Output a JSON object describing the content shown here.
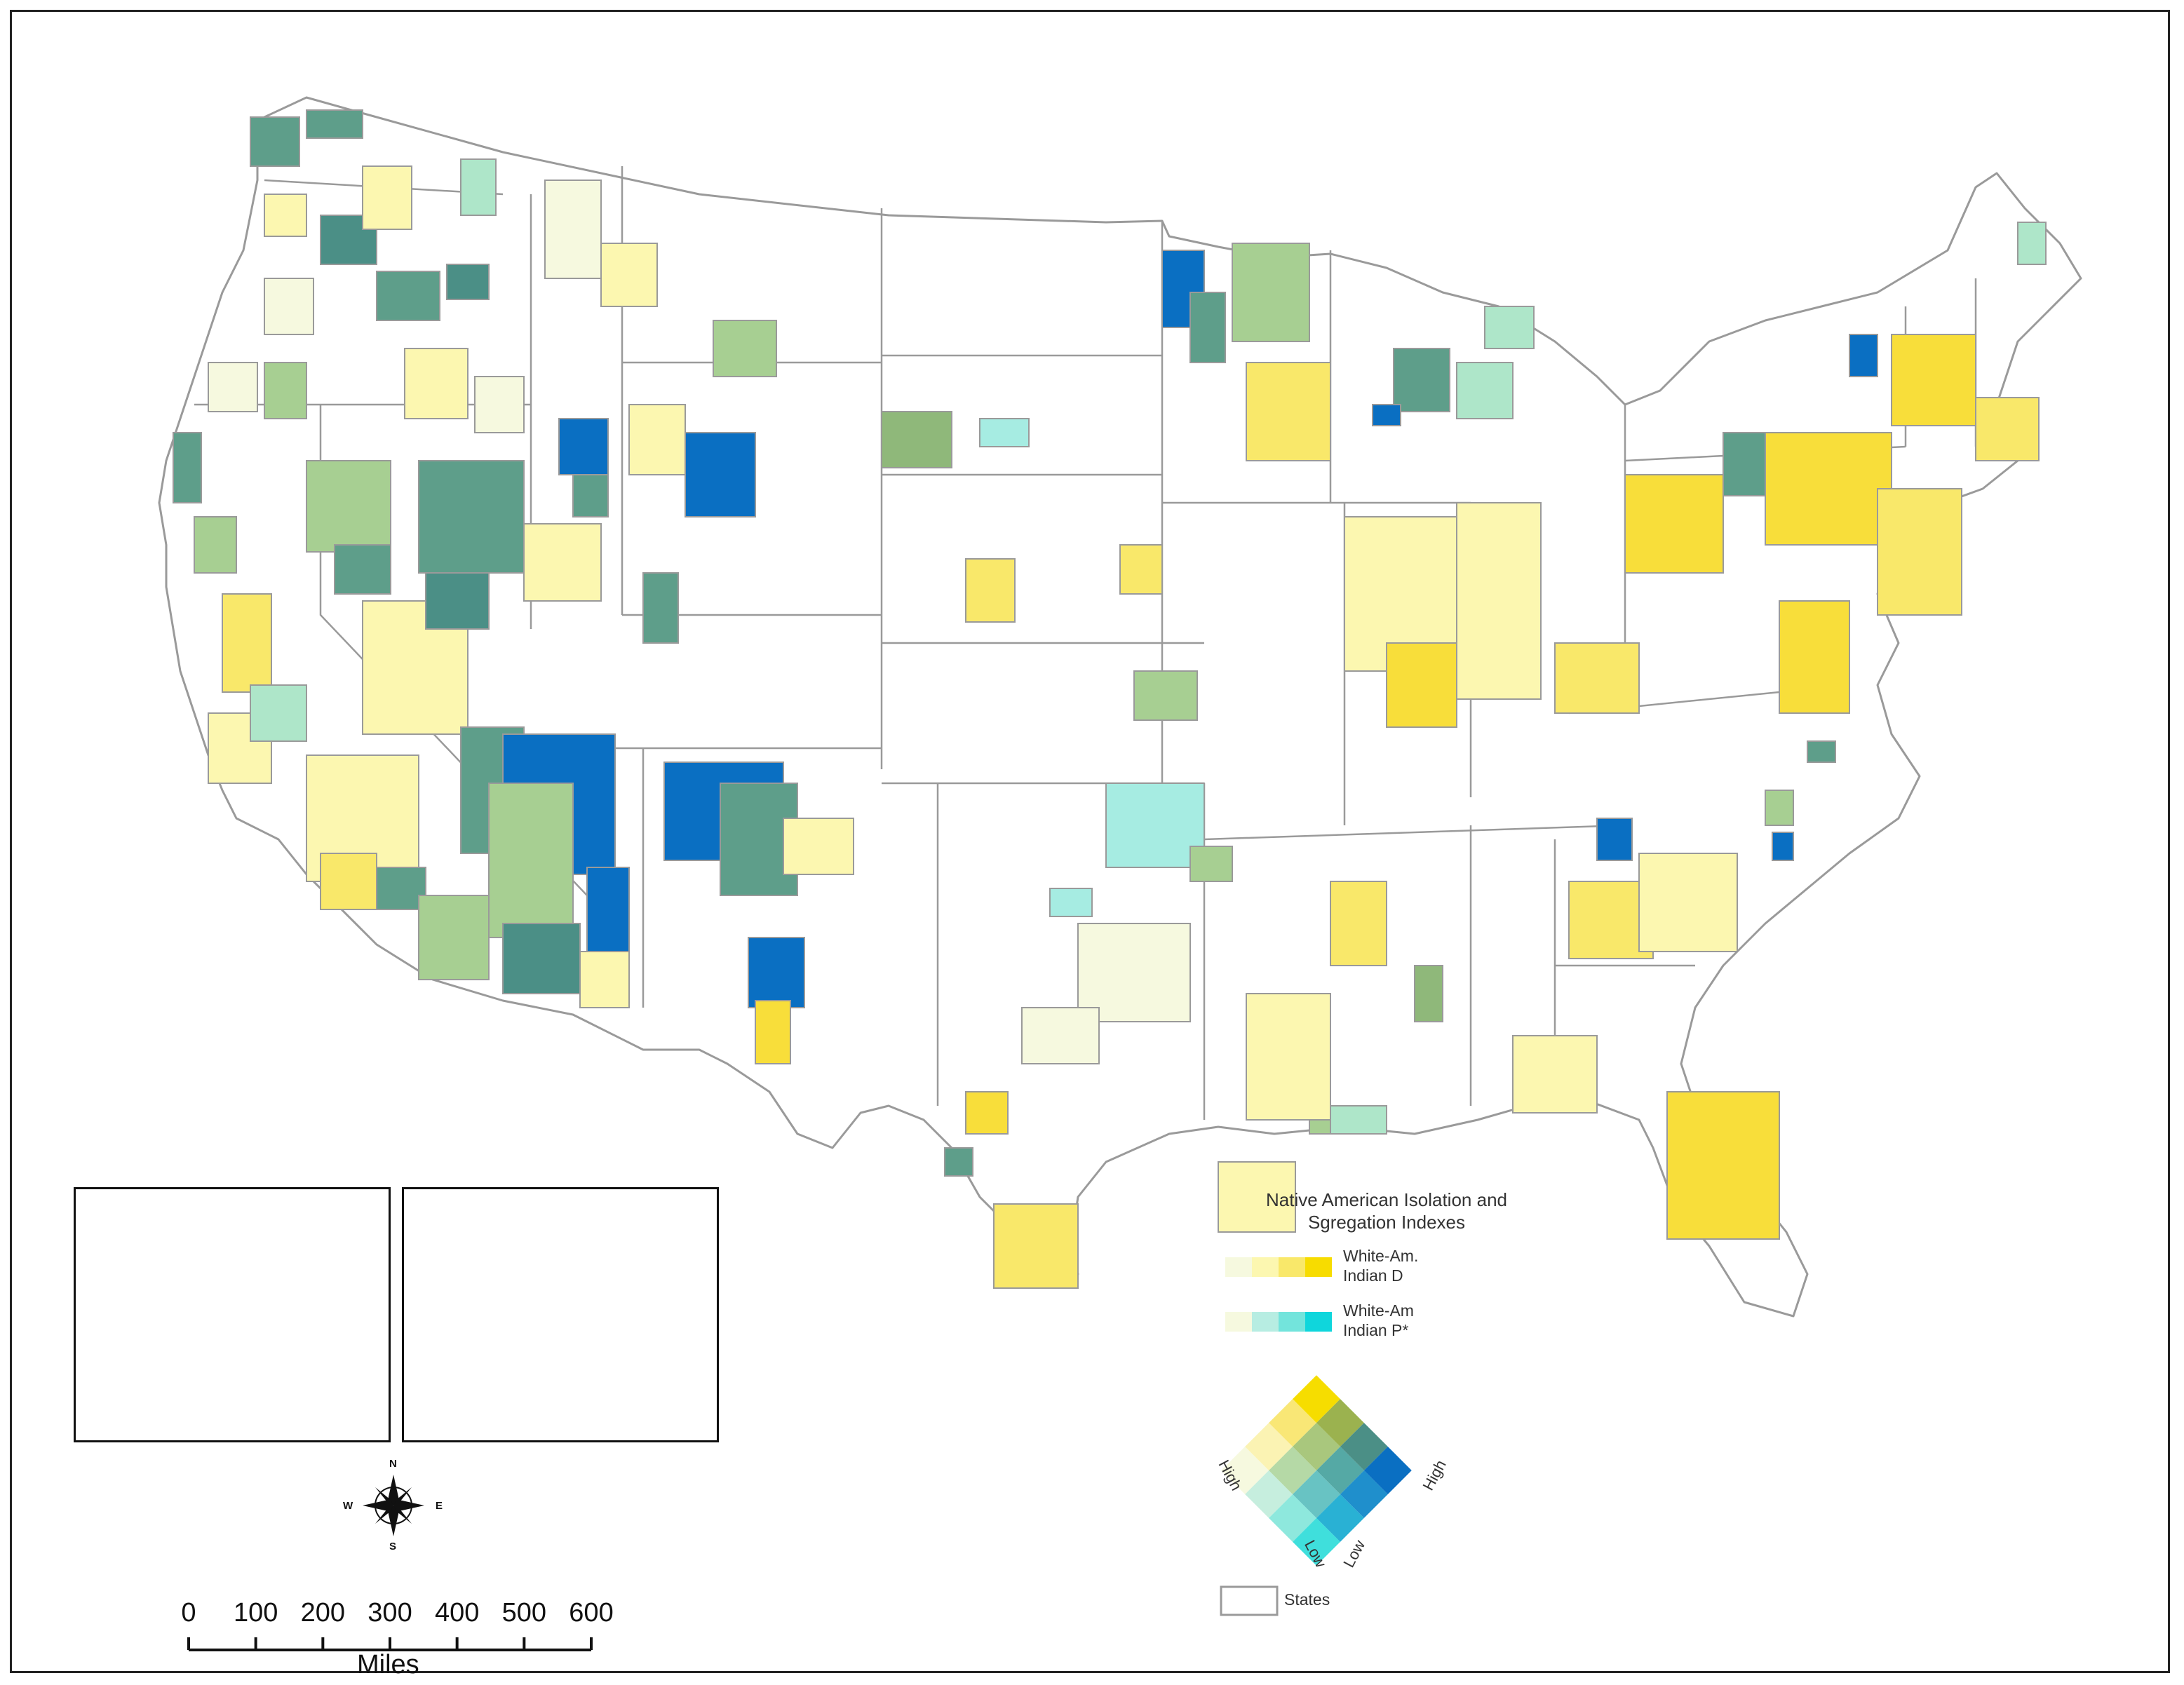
{
  "map": {
    "colors": {
      "state_border": "#9a9a9a",
      "none": "#ffffff",
      "pale": "#f6f9df",
      "light_yellow": "#fcf7b0",
      "yellow": "#f9e86a",
      "gold": "#f8de3a",
      "light_green": "#a7cf92",
      "green": "#8fb87a",
      "teal": "#5e9e8a",
      "teal_dark": "#4b8f86",
      "mint": "#aee6c9",
      "cyan_light": "#a6ece2",
      "blue": "#0a6fc2"
    }
  },
  "legend": {
    "title_line1": "Native American Isolation and",
    "title_line2": "Sgregation Indexes",
    "dissimilarity_label_line1": "White-Am.",
    "dissimilarity_label_line2": "Indian D",
    "isolation_label_line1": "White-Am",
    "isolation_label_line2": "Indian P*",
    "left_high": "High",
    "right_high": "High",
    "left_low": "Low",
    "right_low": "Low",
    "states_label": "States",
    "d_ramp": [
      "#f6f9df",
      "#fcf7b0",
      "#f9e86a",
      "#f7dc00"
    ],
    "p_ramp": [
      "#f6f9df",
      "#b7ede2",
      "#73e4dc",
      "#0fd6dc"
    ],
    "bivariate_colors": [
      [
        "#f6f9df",
        "#c6eede",
        "#8ee8dd",
        "#3fdfdc"
      ],
      [
        "#fbf3b3",
        "#b5d9a6",
        "#68c3c3",
        "#29b1d4"
      ],
      [
        "#f9e776",
        "#a9c77d",
        "#55a9a5",
        "#1f8fcc"
      ],
      [
        "#f6dd00",
        "#9bb24f",
        "#4b8f86",
        "#0a6fc2"
      ]
    ]
  },
  "scale_bar": {
    "ticks": [
      "0",
      "100",
      "200",
      "300",
      "400",
      "500",
      "600"
    ],
    "units": "Miles"
  },
  "compass": {
    "n": "N",
    "s": "S",
    "e": "E",
    "w": "W"
  }
}
